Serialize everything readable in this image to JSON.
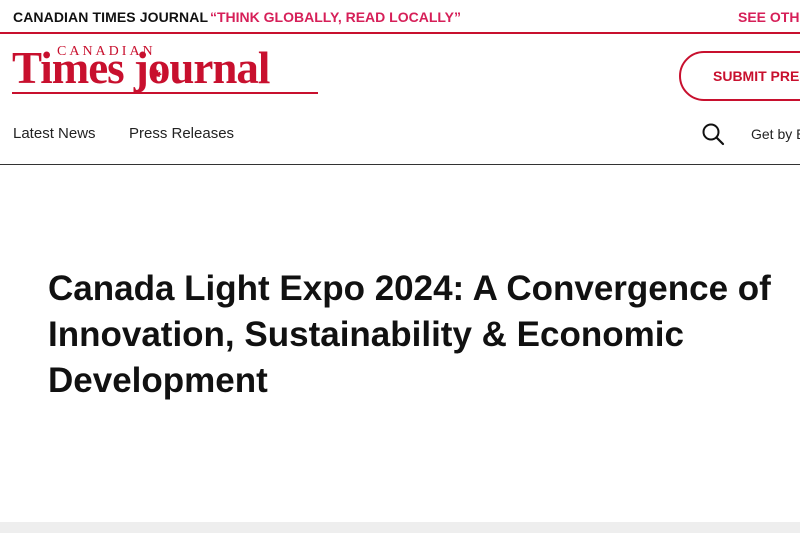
{
  "topbar": {
    "site_name": "CANADIAN TIMES JOURNAL",
    "slogan": "“THINK GLOBALLY, READ LOCALLY”",
    "see_other": "SEE OTHE"
  },
  "logo": {
    "small_text": "CANADIAN",
    "main_text": "Times journal"
  },
  "header": {
    "submit_label": "SUBMIT PRES"
  },
  "nav": {
    "items": [
      {
        "label": "Latest News"
      },
      {
        "label": "Press Releases"
      }
    ],
    "get_by": "Get by E"
  },
  "article": {
    "headline_lines": [
      "Canada Light Expo 2024: A Convergence of",
      "Innovation, Sustainability & Economic",
      "Development"
    ]
  },
  "colors": {
    "brand_red": "#c8102e",
    "accent_pink": "#d61f58"
  },
  "icons": [
    "search-icon",
    "maple-leaf-icon"
  ]
}
